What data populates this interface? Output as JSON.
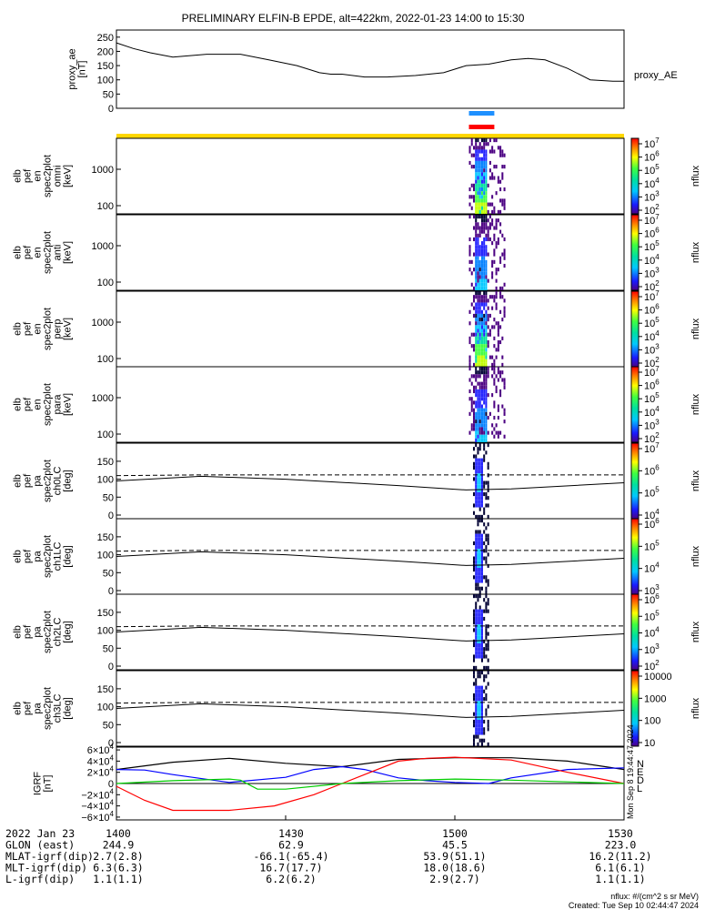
{
  "title": "PRELIMINARY ELFIN-B EPDE, alt=422km, 2022-01-23 14:00 to 15:30",
  "chart_data": [
    {
      "type": "line",
      "name": "proxy_ae",
      "ylabel": [
        "proxy_ae",
        "[nT]"
      ],
      "legend": "proxy_AE",
      "ylim": [
        0,
        275
      ],
      "yticks": [
        "250",
        "200",
        "150",
        "100",
        "50",
        "0"
      ],
      "xlim": [
        0,
        90
      ],
      "x": [
        0,
        3,
        6,
        10,
        16,
        22,
        27,
        32,
        36,
        38,
        40,
        44,
        48,
        53,
        58,
        62,
        66,
        70,
        73,
        76,
        80,
        84,
        88,
        90
      ],
      "y": [
        230,
        210,
        195,
        180,
        190,
        190,
        170,
        150,
        125,
        120,
        120,
        110,
        110,
        115,
        125,
        150,
        155,
        170,
        175,
        170,
        140,
        100,
        95,
        95
      ]
    },
    {
      "type": "heatmap",
      "panels": [
        {
          "ylabel": [
            "elb",
            "pef",
            "en",
            "spec2plot",
            "omni",
            "[keV]"
          ],
          "yticks": [
            "1000",
            "100"
          ],
          "cbar_ticks": [
            "10^7",
            "10^6",
            "10^5",
            "10^4",
            "10^3",
            "10^2"
          ],
          "cbar_label": "nflux"
        },
        {
          "ylabel": [
            "elb",
            "pef",
            "en",
            "spec2plot",
            "anti",
            "[keV]"
          ],
          "yticks": [
            "1000",
            "100"
          ],
          "cbar_ticks": [
            "10^7",
            "10^6",
            "10^5",
            "10^4",
            "10^3",
            "10^2"
          ],
          "cbar_label": "nflux"
        },
        {
          "ylabel": [
            "elb",
            "pef",
            "en",
            "spec2plot",
            "perp",
            "[keV]"
          ],
          "yticks": [
            "1000",
            "100"
          ],
          "cbar_ticks": [
            "10^7",
            "10^6",
            "10^5",
            "10^4",
            "10^3",
            "10^2"
          ],
          "cbar_label": "nflux"
        },
        {
          "ylabel": [
            "elb",
            "pef",
            "en",
            "spec2plot",
            "para",
            "[keV]"
          ],
          "yticks": [
            "1000",
            "100"
          ],
          "cbar_ticks": [
            "10^7",
            "10^6",
            "10^5",
            "10^4",
            "10^3",
            "10^2"
          ],
          "cbar_label": "nflux"
        },
        {
          "ylabel": [
            "elb",
            "pef",
            "pa",
            "spec2plot",
            "ch0LC",
            "[deg]"
          ],
          "yticks": [
            "150",
            "100",
            "50",
            "0"
          ],
          "cbar_ticks": [
            "10^7",
            "10^6",
            "10^5",
            "10^4"
          ],
          "cbar_label": "nflux"
        },
        {
          "ylabel": [
            "elb",
            "pef",
            "pa",
            "spec2plot",
            "ch1LC",
            "[deg]"
          ],
          "yticks": [
            "150",
            "100",
            "50",
            "0"
          ],
          "cbar_ticks": [
            "10^6",
            "10^5",
            "10^4",
            "10^3"
          ],
          "cbar_label": "nflux"
        },
        {
          "ylabel": [
            "elb",
            "pef",
            "pa",
            "spec2plot",
            "ch2LC",
            "[deg]"
          ],
          "yticks": [
            "150",
            "100",
            "50",
            "0"
          ],
          "cbar_ticks": [
            "10^6",
            "10^5",
            "10^4",
            "10^3",
            "10^2"
          ],
          "cbar_label": "nflux"
        },
        {
          "ylabel": [
            "elb",
            "pef",
            "pa",
            "spec2plot",
            "ch3LC",
            "[deg]"
          ],
          "yticks": [
            "150",
            "100",
            "50",
            "0"
          ],
          "cbar_ticks": [
            "10000",
            "1000",
            "100",
            "10"
          ],
          "cbar_label": "nflux"
        }
      ]
    },
    {
      "type": "line",
      "name": "IGRF",
      "ylabel": [
        "IGRF",
        "[nT]"
      ],
      "ylim": [
        -65000,
        65000
      ],
      "yticks": [
        "6×10^4",
        "4×10^4",
        "2×10^4",
        "0",
        "−2×10^4",
        "−4×10^4",
        "−6×10^4"
      ],
      "legend": [
        "N",
        "E",
        "D",
        "L"
      ],
      "legend_colors": [
        "#0000ff",
        "#ff0000",
        "#ff0000",
        "#00cc00"
      ],
      "side_label": "Mon Sep 8 19:44:47 2024",
      "series": [
        {
          "name": "black",
          "color": "#000000",
          "x": [
            0,
            10,
            20,
            30,
            40,
            50,
            60,
            70,
            80,
            90
          ],
          "y": [
            25000,
            38000,
            45000,
            36000,
            30000,
            43000,
            46000,
            46000,
            40000,
            25000
          ]
        },
        {
          "name": "blue",
          "color": "#0000ff",
          "x": [
            0,
            5,
            10,
            20,
            30,
            35,
            40,
            44,
            50,
            55,
            60,
            66,
            70,
            80,
            90
          ],
          "y": [
            25000,
            24000,
            16000,
            2000,
            11000,
            25000,
            30000,
            25000,
            10000,
            5000,
            2000,
            0,
            10000,
            25000,
            28000
          ]
        },
        {
          "name": "red",
          "color": "#ff0000",
          "x": [
            0,
            5,
            10,
            20,
            28,
            35,
            40,
            45,
            50,
            55,
            60,
            70,
            80,
            90
          ],
          "y": [
            -5000,
            -30000,
            -48000,
            -48000,
            -40000,
            -20000,
            0,
            20000,
            40000,
            45000,
            47000,
            42000,
            20000,
            0
          ]
        },
        {
          "name": "green",
          "color": "#00cc00",
          "x": [
            0,
            10,
            20,
            22,
            25,
            30,
            40,
            50,
            60,
            70,
            80,
            90
          ],
          "y": [
            0,
            5000,
            8000,
            6000,
            -10000,
            -10000,
            0,
            5000,
            8000,
            6000,
            3000,
            0
          ]
        }
      ]
    }
  ],
  "events": {
    "blue_bar": "",
    "red_bar": ""
  },
  "xaxis": {
    "rows": [
      {
        "label": "2022 Jan 23",
        "values": [
          "1400",
          "1430",
          "1500",
          "1530"
        ]
      },
      {
        "label": "GLON (east)",
        "values": [
          "244.9",
          "62.9",
          "45.5",
          "223.0"
        ]
      },
      {
        "label": "MLAT-igrf(dip)",
        "values": [
          "2.7(2.8)",
          "-66.1(-65.4)",
          "53.9(51.1)",
          "16.2(11.2)"
        ]
      },
      {
        "label": "MLT-igrf(dip)",
        "values": [
          "6.3(6.3)",
          "16.7(17.7)",
          "18.0(18.6)",
          "6.1(6.1)"
        ]
      },
      {
        "label": "L-igrf(dip)",
        "values": [
          "1.1(1.1)",
          "6.2(6.2)",
          "2.9(2.7)",
          "1.1(1.1)"
        ]
      }
    ]
  },
  "footer": {
    "line1": "nflux: #/(cm^2 s sr MeV)",
    "line2": "Created: Tue Sep 10 02:44:47 2024"
  }
}
